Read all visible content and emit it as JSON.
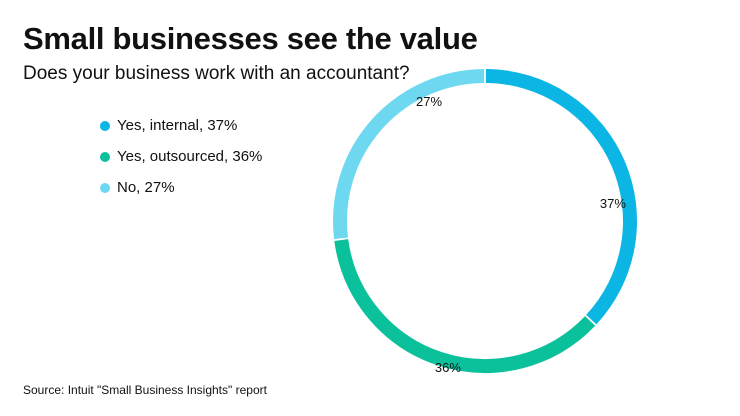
{
  "header": {
    "title": "Small businesses see the value",
    "subtitle": "Does your business work with an accountant?"
  },
  "legend": {
    "items": [
      {
        "label": "Yes, internal, 37%",
        "color": "#0cb6e4"
      },
      {
        "label": "Yes, outsourced, 36%",
        "color": "#0ac19c"
      },
      {
        "label": "No, 27%",
        "color": "#6dd8f0"
      }
    ]
  },
  "chart_data": {
    "type": "pie",
    "variant": "donut",
    "title": "Small businesses see the value",
    "subtitle": "Does your business work with an accountant?",
    "categories": [
      "Yes, internal",
      "Yes, outsourced",
      "No"
    ],
    "values": [
      37,
      36,
      27
    ],
    "unit": "%",
    "data_labels": [
      "37%",
      "36%",
      "27%"
    ],
    "colors": [
      "#0cb6e4",
      "#0ac19c",
      "#6dd8f0"
    ],
    "start_angle": "top, clockwise",
    "legend_position": "left"
  },
  "footer": {
    "source": "Source: Intuit \"Small Business Insights\" report"
  }
}
